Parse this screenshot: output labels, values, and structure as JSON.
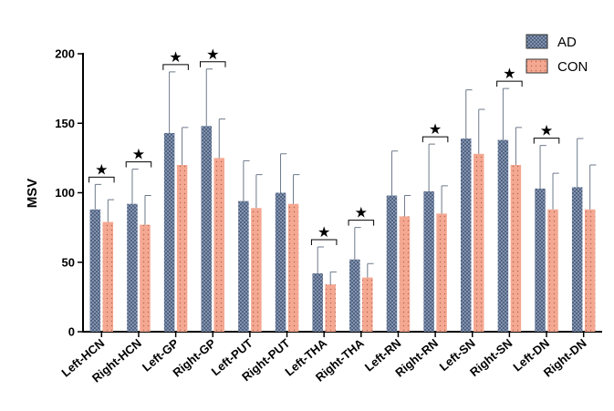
{
  "chart_data": {
    "type": "bar",
    "ylabel": "MSV",
    "xlabel": "",
    "ylim": [
      0,
      200
    ],
    "yticks": [
      0,
      50,
      100,
      150,
      200
    ],
    "categories": [
      "Left-HCN",
      "Right-HCN",
      "Left-GP",
      "Right-GP",
      "Left-PUT",
      "Right-PUT",
      "Left-THA",
      "Right-THA",
      "Left-RN",
      "Right-RN",
      "Left-SN",
      "Right-SN",
      "Left-DN",
      "Right-DN"
    ],
    "series": [
      {
        "name": "AD",
        "color": "#8a9cb8",
        "pattern": "crosshatch",
        "values": [
          88,
          92,
          143,
          148,
          94,
          100,
          42,
          52,
          98,
          101,
          139,
          138,
          103,
          104
        ],
        "errors": [
          18,
          25,
          44,
          41,
          29,
          28,
          19,
          23,
          32,
          34,
          35,
          37,
          31,
          35
        ]
      },
      {
        "name": "CON",
        "color": "#f4a892",
        "pattern": "dots",
        "values": [
          79,
          77,
          120,
          125,
          89,
          92,
          34,
          39,
          83,
          85,
          128,
          120,
          88,
          88
        ],
        "errors": [
          16,
          21,
          27,
          28,
          24,
          21,
          9,
          10,
          15,
          20,
          32,
          27,
          26,
          32
        ]
      }
    ],
    "significant": [
      true,
      true,
      true,
      true,
      false,
      false,
      true,
      true,
      false,
      true,
      false,
      true,
      true,
      false
    ],
    "significance_marker": "★",
    "grid": false,
    "legend_position": "top-right"
  }
}
